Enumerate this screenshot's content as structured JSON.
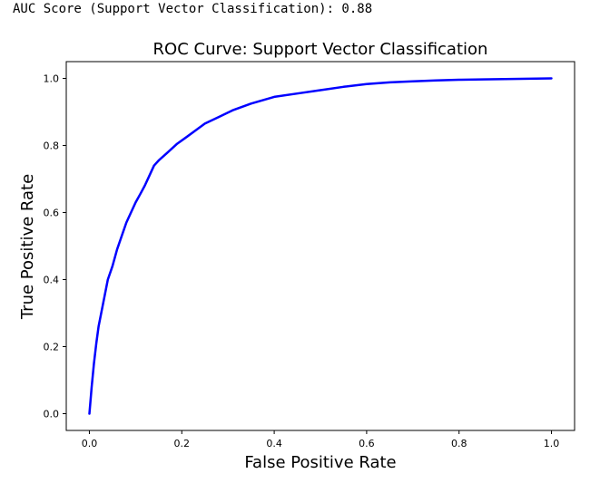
{
  "output": {
    "text": "AUC Score (Support Vector Classification): 0.88"
  },
  "chart_data": {
    "type": "line",
    "title": "ROC Curve: Support Vector Classification",
    "xlabel": "False Positive Rate",
    "ylabel": "True Positive Rate",
    "xlim": [
      -0.05,
      1.05
    ],
    "ylim": [
      -0.05,
      1.05
    ],
    "xticks": [
      0.0,
      0.2,
      0.4,
      0.6,
      0.8,
      1.0
    ],
    "xtick_labels": [
      "0.0",
      "0.2",
      "0.4",
      "0.6",
      "0.8",
      "1.0"
    ],
    "yticks": [
      0.0,
      0.2,
      0.4,
      0.6,
      0.8,
      1.0
    ],
    "ytick_labels": [
      "0.0",
      "0.2",
      "0.4",
      "0.6",
      "0.8",
      "1.0"
    ],
    "grid": false,
    "series": [
      {
        "color": "#0000ff",
        "x": [
          0.0,
          0.005,
          0.01,
          0.015,
          0.02,
          0.03,
          0.04,
          0.05,
          0.06,
          0.07,
          0.08,
          0.09,
          0.1,
          0.11,
          0.12,
          0.13,
          0.14,
          0.15,
          0.17,
          0.19,
          0.21,
          0.23,
          0.25,
          0.28,
          0.31,
          0.35,
          0.4,
          0.45,
          0.5,
          0.55,
          0.6,
          0.65,
          0.7,
          0.75,
          0.8,
          0.85,
          0.9,
          0.95,
          1.0
        ],
        "y": [
          0.0,
          0.08,
          0.15,
          0.21,
          0.26,
          0.33,
          0.4,
          0.44,
          0.49,
          0.53,
          0.57,
          0.6,
          0.63,
          0.655,
          0.68,
          0.71,
          0.74,
          0.755,
          0.78,
          0.805,
          0.825,
          0.845,
          0.865,
          0.885,
          0.905,
          0.925,
          0.945,
          0.955,
          0.965,
          0.975,
          0.983,
          0.988,
          0.991,
          0.994,
          0.996,
          0.997,
          0.998,
          0.999,
          1.0
        ]
      }
    ]
  }
}
